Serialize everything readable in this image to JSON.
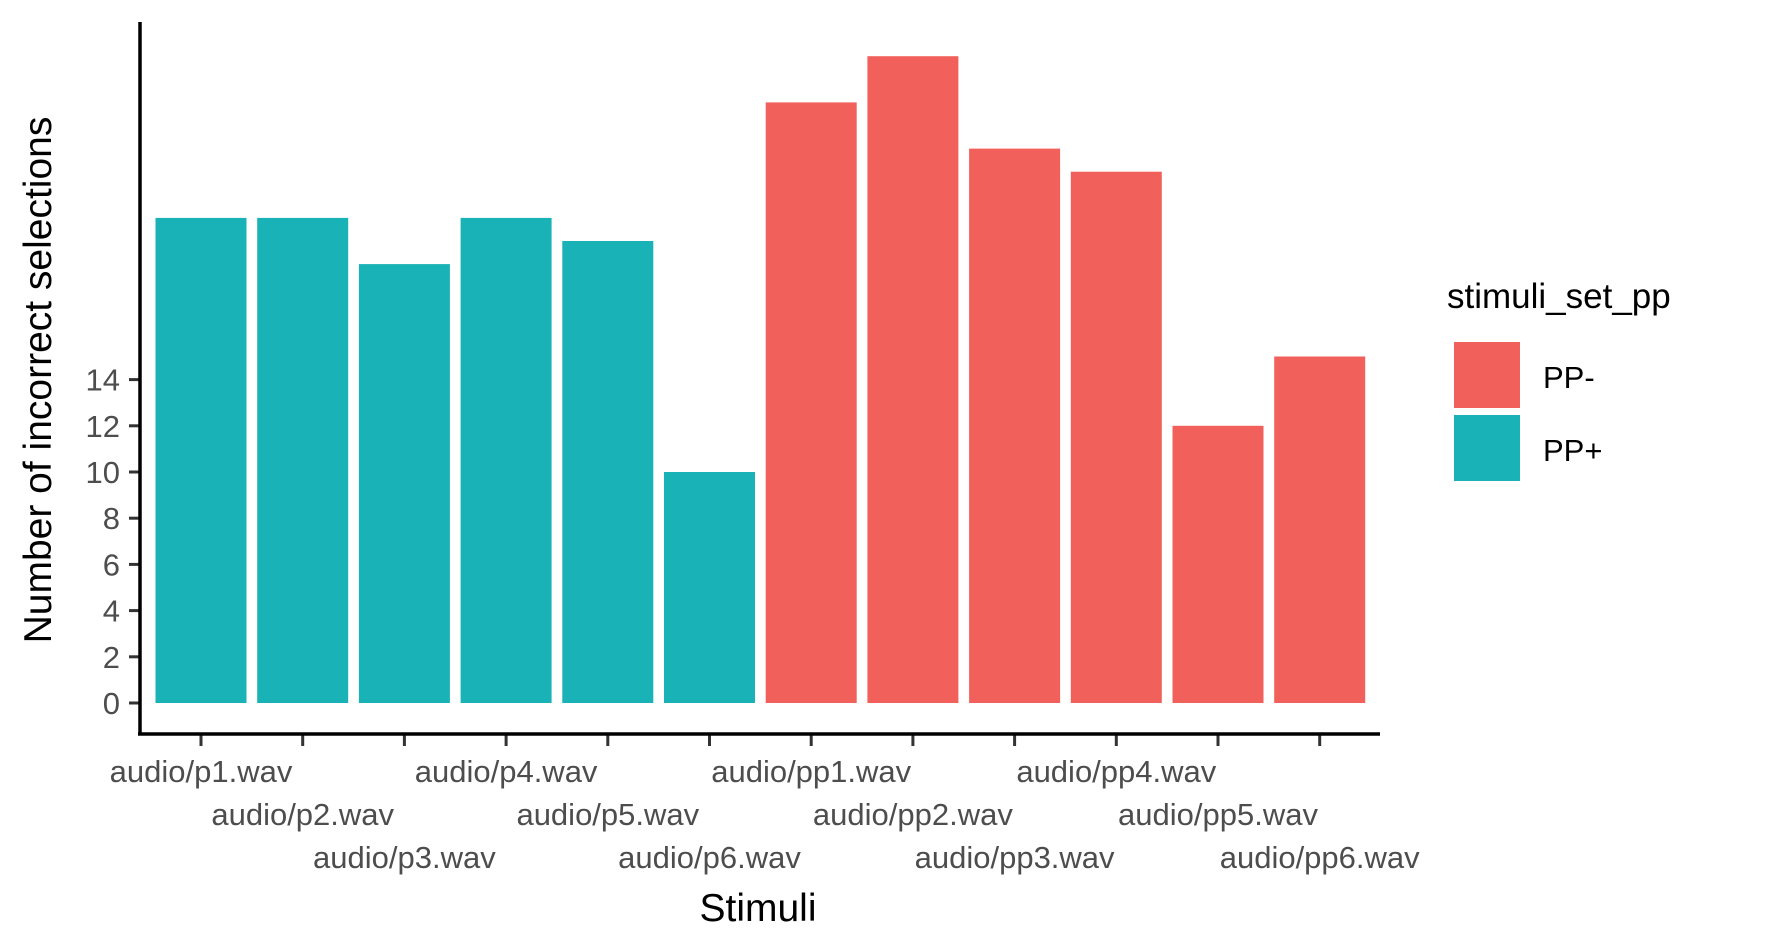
{
  "chart_data": {
    "type": "bar",
    "xlabel": "Stimuli",
    "ylabel": "Number of incorrect selections",
    "categories": [
      "audio/p1.wav",
      "audio/p2.wav",
      "audio/p3.wav",
      "audio/p4.wav",
      "audio/p5.wav",
      "audio/p6.wav",
      "audio/pp1.wav",
      "audio/pp2.wav",
      "audio/pp3.wav",
      "audio/pp4.wav",
      "audio/pp5.wav",
      "audio/pp6.wav"
    ],
    "values": [
      21,
      21,
      19,
      21,
      20,
      10,
      26,
      28,
      24,
      23,
      12,
      15
    ],
    "groups": [
      "PP+",
      "PP+",
      "PP+",
      "PP+",
      "PP+",
      "PP+",
      "PP-",
      "PP-",
      "PP-",
      "PP-",
      "PP-",
      "PP-"
    ],
    "yticks": [
      "0",
      "2",
      "4",
      "6",
      "8",
      "10",
      "12",
      "14"
    ],
    "ylim": [
      0,
      28.6
    ],
    "legend": {
      "title": "stimuli_set_pp",
      "position": "right",
      "items": [
        {
          "label": "PP-",
          "color": "#F2605C"
        },
        {
          "label": "PP+",
          "color": "#19B2B6"
        }
      ]
    },
    "grid": false
  }
}
